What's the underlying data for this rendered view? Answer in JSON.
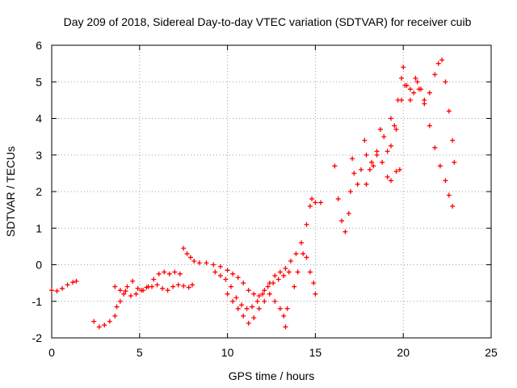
{
  "chart_data": {
    "type": "scatter",
    "title": "Day 209 of 2018, Sidereal Day-to-day VTEC variation (SDTVAR) for receiver cuib",
    "xlabel": "GPS time / hours",
    "ylabel": "SDTVAR / TECUs",
    "xlim": [
      0,
      25
    ],
    "ylim": [
      -2,
      6
    ],
    "xticks": [
      "0",
      "5",
      "10",
      "15",
      "20",
      "25"
    ],
    "yticks": [
      "-2",
      "-1",
      "0",
      "1",
      "2",
      "3",
      "4",
      "5",
      "6"
    ],
    "grid": true,
    "marker": "+",
    "colors": {
      "series": "#ff0000",
      "grid": "#a0a0a0",
      "axis": "#000000"
    },
    "series": [
      {
        "points": [
          [
            0.0,
            -0.7
          ],
          [
            0.3,
            -0.72
          ],
          [
            0.6,
            -0.65
          ],
          [
            0.9,
            -0.55
          ],
          [
            1.2,
            -0.48
          ],
          [
            1.4,
            -0.45
          ],
          [
            2.4,
            -1.55
          ],
          [
            2.7,
            -1.7
          ],
          [
            3.0,
            -1.65
          ],
          [
            3.3,
            -1.55
          ],
          [
            3.6,
            -1.4
          ],
          [
            3.7,
            -1.15
          ],
          [
            3.9,
            -1.0
          ],
          [
            4.1,
            -0.8
          ],
          [
            4.3,
            -0.6
          ],
          [
            4.6,
            -0.45
          ],
          [
            4.9,
            -0.65
          ],
          [
            5.2,
            -0.7
          ],
          [
            5.5,
            -0.6
          ],
          [
            5.8,
            -0.4
          ],
          [
            6.1,
            -0.25
          ],
          [
            6.4,
            -0.2
          ],
          [
            6.7,
            -0.25
          ],
          [
            7.0,
            -0.2
          ],
          [
            7.3,
            -0.25
          ],
          [
            3.6,
            -0.6
          ],
          [
            3.9,
            -0.7
          ],
          [
            4.2,
            -0.72
          ],
          [
            4.5,
            -0.85
          ],
          [
            4.8,
            -0.8
          ],
          [
            5.1,
            -0.7
          ],
          [
            5.4,
            -0.62
          ],
          [
            5.7,
            -0.6
          ],
          [
            6.0,
            -0.55
          ],
          [
            6.3,
            -0.65
          ],
          [
            6.6,
            -0.7
          ],
          [
            6.9,
            -0.6
          ],
          [
            7.2,
            -0.55
          ],
          [
            7.5,
            -0.58
          ],
          [
            7.8,
            -0.62
          ],
          [
            8.0,
            -0.55
          ],
          [
            7.5,
            0.45
          ],
          [
            7.7,
            0.3
          ],
          [
            7.9,
            0.2
          ],
          [
            8.1,
            0.1
          ],
          [
            8.4,
            0.05
          ],
          [
            8.8,
            0.05
          ],
          [
            9.2,
            0.0
          ],
          [
            9.6,
            -0.05
          ],
          [
            10.0,
            -0.15
          ],
          [
            10.3,
            -0.25
          ],
          [
            10.6,
            -0.35
          ],
          [
            10.9,
            -0.5
          ],
          [
            11.2,
            -0.7
          ],
          [
            11.5,
            -0.8
          ],
          [
            11.8,
            -0.85
          ],
          [
            12.1,
            -0.7
          ],
          [
            12.4,
            -0.5
          ],
          [
            12.7,
            -0.3
          ],
          [
            13.0,
            -0.2
          ],
          [
            13.3,
            -0.1
          ],
          [
            13.6,
            0.1
          ],
          [
            13.9,
            0.3
          ],
          [
            14.2,
            0.6
          ],
          [
            14.5,
            1.1
          ],
          [
            14.7,
            1.6
          ],
          [
            14.8,
            1.8
          ],
          [
            15.0,
            1.7
          ],
          [
            15.3,
            1.7
          ],
          [
            9.3,
            -0.2
          ],
          [
            9.6,
            -0.3
          ],
          [
            9.9,
            -0.4
          ],
          [
            10.2,
            -0.6
          ],
          [
            10.5,
            -0.9
          ],
          [
            10.8,
            -1.1
          ],
          [
            11.1,
            -1.2
          ],
          [
            11.4,
            -1.15
          ],
          [
            11.7,
            -1.0
          ],
          [
            12.0,
            -0.8
          ],
          [
            12.3,
            -0.6
          ],
          [
            12.6,
            -0.5
          ],
          [
            12.9,
            -0.4
          ],
          [
            13.2,
            -0.3
          ],
          [
            13.5,
            -0.2
          ],
          [
            10.0,
            -0.8
          ],
          [
            10.3,
            -1.0
          ],
          [
            10.6,
            -1.2
          ],
          [
            10.9,
            -1.4
          ],
          [
            11.2,
            -1.6
          ],
          [
            11.5,
            -1.45
          ],
          [
            11.8,
            -1.2
          ],
          [
            12.1,
            -1.0
          ],
          [
            12.4,
            -0.8
          ],
          [
            12.7,
            -1.0
          ],
          [
            13.0,
            -1.2
          ],
          [
            13.2,
            -1.4
          ],
          [
            13.3,
            -1.7
          ],
          [
            13.4,
            -1.2
          ],
          [
            13.8,
            -0.6
          ],
          [
            14.0,
            -0.2
          ],
          [
            14.3,
            0.3
          ],
          [
            14.5,
            0.2
          ],
          [
            14.7,
            -0.2
          ],
          [
            14.9,
            -0.5
          ],
          [
            15.0,
            -0.8
          ],
          [
            16.1,
            2.7
          ],
          [
            16.3,
            1.8
          ],
          [
            16.5,
            1.2
          ],
          [
            16.7,
            0.9
          ],
          [
            16.9,
            1.4
          ],
          [
            17.0,
            2.0
          ],
          [
            17.1,
            2.9
          ],
          [
            17.2,
            2.5
          ],
          [
            17.4,
            2.2
          ],
          [
            17.6,
            2.6
          ],
          [
            17.8,
            3.4
          ],
          [
            17.9,
            3.0
          ],
          [
            18.1,
            2.6
          ],
          [
            18.3,
            2.7
          ],
          [
            18.5,
            3.1
          ],
          [
            18.7,
            3.7
          ],
          [
            18.9,
            3.5
          ],
          [
            19.1,
            3.1
          ],
          [
            19.3,
            3.25
          ],
          [
            19.5,
            3.8
          ],
          [
            19.7,
            4.5
          ],
          [
            19.9,
            5.1
          ],
          [
            20.0,
            5.4
          ],
          [
            20.2,
            4.9
          ],
          [
            20.4,
            4.5
          ],
          [
            20.6,
            4.7
          ],
          [
            20.8,
            5.0
          ],
          [
            21.0,
            4.8
          ],
          [
            21.2,
            4.5
          ],
          [
            21.5,
            4.7
          ],
          [
            21.8,
            5.2
          ],
          [
            22.0,
            5.5
          ],
          [
            22.2,
            5.6
          ],
          [
            22.4,
            5.0
          ],
          [
            22.6,
            4.2
          ],
          [
            22.8,
            3.4
          ],
          [
            22.9,
            2.8
          ],
          [
            17.9,
            2.2
          ],
          [
            18.2,
            2.8
          ],
          [
            18.5,
            3.0
          ],
          [
            18.8,
            2.8
          ],
          [
            19.1,
            2.4
          ],
          [
            19.3,
            2.3
          ],
          [
            19.6,
            2.55
          ],
          [
            19.8,
            2.6
          ],
          [
            19.3,
            4.0
          ],
          [
            19.6,
            3.7
          ],
          [
            19.9,
            4.5
          ],
          [
            20.1,
            4.9
          ],
          [
            20.4,
            4.8
          ],
          [
            20.7,
            5.1
          ],
          [
            20.9,
            4.8
          ],
          [
            21.2,
            4.4
          ],
          [
            21.5,
            3.8
          ],
          [
            21.8,
            3.2
          ],
          [
            22.1,
            2.7
          ],
          [
            22.4,
            2.3
          ],
          [
            22.6,
            1.9
          ],
          [
            22.8,
            1.6
          ]
        ]
      }
    ]
  }
}
